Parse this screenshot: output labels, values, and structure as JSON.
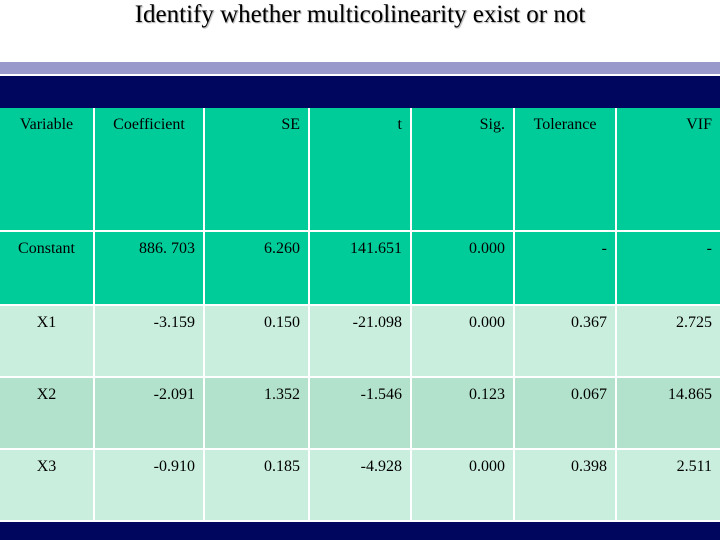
{
  "title": "Identify whether multicolinearity exist or not",
  "table": {
    "header": [
      "Variable",
      "Coefficient",
      "SE",
      "t",
      "Sig.",
      "Tolerance",
      "VIF"
    ],
    "rows": [
      [
        "Constant",
        "886. 703",
        "6.260",
        "141.651",
        "0.000",
        "-",
        "-"
      ],
      [
        "X1",
        "-3.159",
        "0.150",
        "-21.098",
        "0.000",
        "0.367",
        "2.725"
      ],
      [
        "X2",
        "-2.091",
        "1.352",
        "-1.546",
        "0.123",
        "0.067",
        "14.865"
      ],
      [
        "X3",
        "-0.910",
        "0.185",
        "-4.928",
        "0.000",
        "0.398",
        "2.511"
      ]
    ]
  }
}
